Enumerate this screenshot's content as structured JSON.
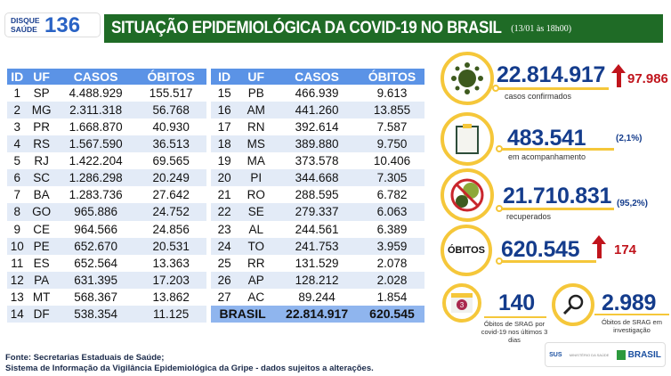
{
  "logo": {
    "disque": "DISQUE SAÚDE",
    "number": "136"
  },
  "header": {
    "title": "SITUAÇÃO EPIDEMIOLÓGICA DA COVID-19 NO BRASIL",
    "date": "(13/01 às 18h00)"
  },
  "table": {
    "columns": [
      "ID",
      "UF",
      "CASOS",
      "ÓBITOS"
    ],
    "left": [
      [
        "1",
        "SP",
        "4.488.929",
        "155.517"
      ],
      [
        "2",
        "MG",
        "2.311.318",
        "56.768"
      ],
      [
        "3",
        "PR",
        "1.668.870",
        "40.930"
      ],
      [
        "4",
        "RS",
        "1.567.590",
        "36.513"
      ],
      [
        "5",
        "RJ",
        "1.422.204",
        "69.565"
      ],
      [
        "6",
        "SC",
        "1.286.298",
        "20.249"
      ],
      [
        "7",
        "BA",
        "1.283.736",
        "27.642"
      ],
      [
        "8",
        "GO",
        "965.886",
        "24.752"
      ],
      [
        "9",
        "CE",
        "964.566",
        "24.856"
      ],
      [
        "10",
        "PE",
        "652.670",
        "20.531"
      ],
      [
        "11",
        "ES",
        "652.564",
        "13.363"
      ],
      [
        "12",
        "PA",
        "631.395",
        "17.203"
      ],
      [
        "13",
        "MT",
        "568.367",
        "13.862"
      ],
      [
        "14",
        "DF",
        "538.354",
        "11.125"
      ]
    ],
    "right": [
      [
        "15",
        "PB",
        "466.939",
        "9.613"
      ],
      [
        "16",
        "AM",
        "441.260",
        "13.855"
      ],
      [
        "17",
        "RN",
        "392.614",
        "7.587"
      ],
      [
        "18",
        "MS",
        "389.880",
        "9.750"
      ],
      [
        "19",
        "MA",
        "373.578",
        "10.406"
      ],
      [
        "20",
        "PI",
        "344.668",
        "7.305"
      ],
      [
        "21",
        "RO",
        "288.595",
        "6.782"
      ],
      [
        "22",
        "SE",
        "279.337",
        "6.063"
      ],
      [
        "23",
        "AL",
        "244.561",
        "6.389"
      ],
      [
        "24",
        "TO",
        "241.753",
        "3.959"
      ],
      [
        "25",
        "RR",
        "131.529",
        "2.078"
      ],
      [
        "26",
        "AP",
        "128.212",
        "2.028"
      ],
      [
        "27",
        "AC",
        "89.244",
        "1.854"
      ]
    ],
    "total": {
      "label": "BRASIL",
      "casos": "22.814.917",
      "obitos": "620.545"
    }
  },
  "stats": {
    "confirmados": {
      "value": "22.814.917",
      "label": "casos confirmados",
      "increase": "97.986"
    },
    "acompanhamento": {
      "value": "483.541",
      "label": "em acompanhamento",
      "pct": "(2,1%)"
    },
    "recuperados": {
      "value": "21.710.831",
      "label": "recuperados",
      "pct": "(95,2%)"
    },
    "obitos": {
      "badge": "ÓBITOS",
      "value": "620.545",
      "increase": "174"
    },
    "srag_3dias": {
      "value": "140",
      "label": "Óbitos de SRAG por covid-19 nos últimos 3 dias",
      "calendar": "3"
    },
    "srag_investigacao": {
      "value": "2.989",
      "label": "Óbitos de SRAG em investigação"
    }
  },
  "footer": {
    "line1": "Fonte: Secretarias Estaduais de Saúde;",
    "line2": "Sistema de Informação da Vigilância Epidemiológica da Gripe - dados sujeitos a alterações."
  },
  "brand": {
    "sus": "SUS",
    "ministerio": "MINISTÉRIO DA SAÚDE",
    "brasil": "BRASIL"
  }
}
